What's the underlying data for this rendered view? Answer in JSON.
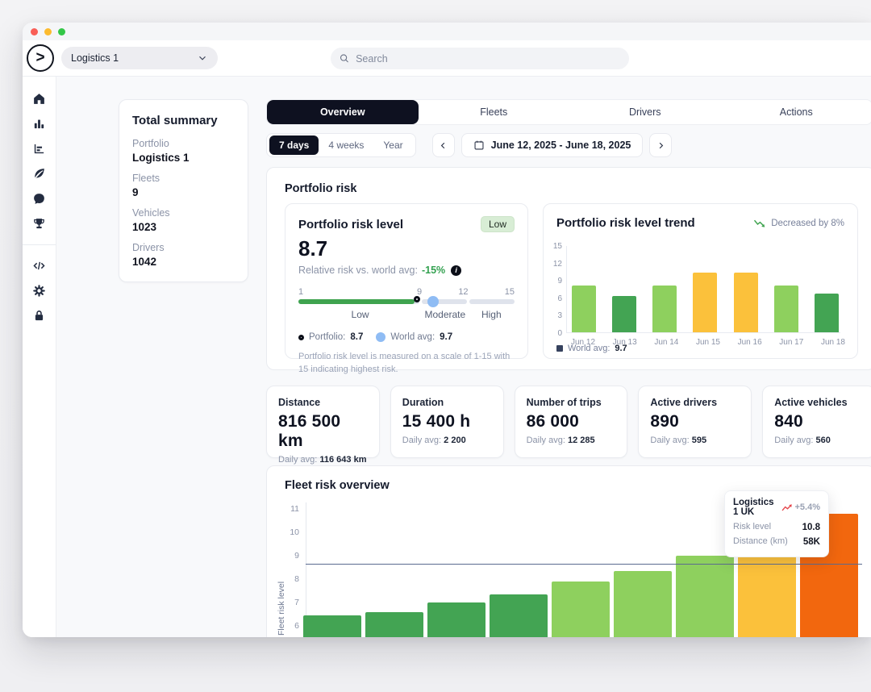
{
  "window": {
    "traffic_lights": [
      "#f95f57",
      "#fcbb2f",
      "#34c748"
    ]
  },
  "header": {
    "org_selector": {
      "label": "Logistics 1"
    },
    "search": {
      "placeholder": "Search"
    }
  },
  "sidebar": {
    "top_icons": [
      "home-icon",
      "bar-chart-icon",
      "chart-levels-icon",
      "leaf-icon",
      "chat-icon",
      "trophy-icon"
    ],
    "bottom_icons": [
      "code-icon",
      "settings-icon",
      "lock-icon"
    ]
  },
  "summary": {
    "title": "Total summary",
    "items": [
      {
        "label": "Portfolio",
        "value": "Logistics 1"
      },
      {
        "label": "Fleets",
        "value": "9"
      },
      {
        "label": "Vehicles",
        "value": "1023"
      },
      {
        "label": "Drivers",
        "value": "1042"
      }
    ]
  },
  "tabs": [
    {
      "label": "Overview",
      "active": true
    },
    {
      "label": "Fleets",
      "active": false
    },
    {
      "label": "Drivers",
      "active": false
    },
    {
      "label": "Actions",
      "active": false
    }
  ],
  "filters": {
    "ranges": [
      {
        "label": "7 days",
        "active": true
      },
      {
        "label": "4 weeks",
        "active": false
      },
      {
        "label": "Year",
        "active": false
      }
    ],
    "date_range": "June 12, 2025 - June 18, 2025"
  },
  "portfolio_risk": {
    "section_title": "Portfolio risk",
    "level_card": {
      "title": "Portfolio risk level",
      "badge": "Low",
      "value": "8.7",
      "relative_label": "Relative risk vs. world avg:",
      "relative_value": "-15%",
      "scale": {
        "min": 1,
        "max": 15,
        "ticks": [
          1,
          9,
          12,
          15
        ],
        "segments": [
          {
            "label": "Low",
            "from": 1,
            "to": 9
          },
          {
            "label": "Moderate",
            "from": 9,
            "to": 12
          },
          {
            "label": "High",
            "from": 12,
            "to": 15
          }
        ],
        "portfolio_value": 8.7,
        "world_avg": 9.7
      },
      "legend": [
        {
          "icon": "ring-marker-icon",
          "label": "Portfolio:",
          "value": "8.7"
        },
        {
          "icon": "dot-marker-icon",
          "label": "World avg:",
          "value": "9.7"
        }
      ],
      "footnote": "Portfolio risk level is measured on a scale of 1-15 with 15 indicating highest risk."
    },
    "trend_card": {
      "title": "Portfolio risk level trend",
      "change_label": "Decreased by 8%",
      "legend_label": "World avg:",
      "legend_value": "9.7"
    }
  },
  "stats": [
    {
      "label": "Distance",
      "value": "816 500 km",
      "daily_label": "Daily avg:",
      "daily_value": "116 643 km"
    },
    {
      "label": "Duration",
      "value": "15 400 h",
      "daily_label": "Daily avg:",
      "daily_value": "2 200"
    },
    {
      "label": "Number of trips",
      "value": "86 000",
      "daily_label": "Daily avg:",
      "daily_value": "12 285"
    },
    {
      "label": "Active drivers",
      "value": "890",
      "daily_label": "Daily avg:",
      "daily_value": "595"
    },
    {
      "label": "Active vehicles",
      "value": "840",
      "daily_label": "Daily avg:",
      "daily_value": "560"
    }
  ],
  "fleet_risk": {
    "title": "Fleet risk overview",
    "ylabel": "Fleet risk level",
    "tooltip": {
      "title": "Logistics 1 UK",
      "change": "+5.4%",
      "rows": [
        {
          "label": "Risk level",
          "value": "10.8"
        },
        {
          "label": "Distance (km)",
          "value": "58K"
        }
      ]
    }
  },
  "colors": {
    "green_light": "#8ed05e",
    "green_dark": "#43a453",
    "yellow": "#fbc13b",
    "orange": "#f2670e",
    "slider_green": "#3fa34f",
    "world_avg_blue": "#8fbcf4",
    "reference_line": "#5b6b8f",
    "active_tab": "#0e1120"
  },
  "chart_data": [
    {
      "id": "portfolio-risk-trend",
      "type": "bar",
      "title": "Portfolio risk level trend",
      "categories": [
        "Jun 12",
        "Jun 13",
        "Jun 14",
        "Jun 15",
        "Jun 16",
        "Jun 17",
        "Jun 18"
      ],
      "values": [
        8,
        6.2,
        8,
        10.3,
        10.3,
        8,
        6.7
      ],
      "bar_colors": [
        "#8ed05e",
        "#43a453",
        "#8ed05e",
        "#fbc13b",
        "#fbc13b",
        "#8ed05e",
        "#43a453"
      ],
      "ylim": [
        0,
        15
      ],
      "yticks": [
        15,
        12,
        9,
        6,
        3,
        0
      ],
      "annotation": "Decreased by 8%",
      "legend": "World avg: 9.7",
      "world_avg": 9.7,
      "grid": false
    },
    {
      "id": "fleet-risk-overview",
      "type": "bar",
      "title": "Fleet risk overview",
      "ylabel": "Fleet risk level",
      "values": [
        6.45,
        6.6,
        7.0,
        7.35,
        7.9,
        8.35,
        9.0,
        9.45,
        10.8
      ],
      "bar_colors": [
        "#43a453",
        "#43a453",
        "#43a453",
        "#43a453",
        "#8ed05e",
        "#8ed05e",
        "#8ed05e",
        "#fbc13b",
        "#f2670e"
      ],
      "yticks": [
        11,
        10,
        9,
        8,
        7,
        6
      ],
      "visible_yrange": [
        6,
        11
      ],
      "reference_line": 8.65,
      "highlight": {
        "bar_index": 8,
        "name": "Logistics 1 UK",
        "risk_level": 10.8,
        "distance_km": "58K",
        "change": "+5.4%"
      },
      "grid": false
    }
  ]
}
